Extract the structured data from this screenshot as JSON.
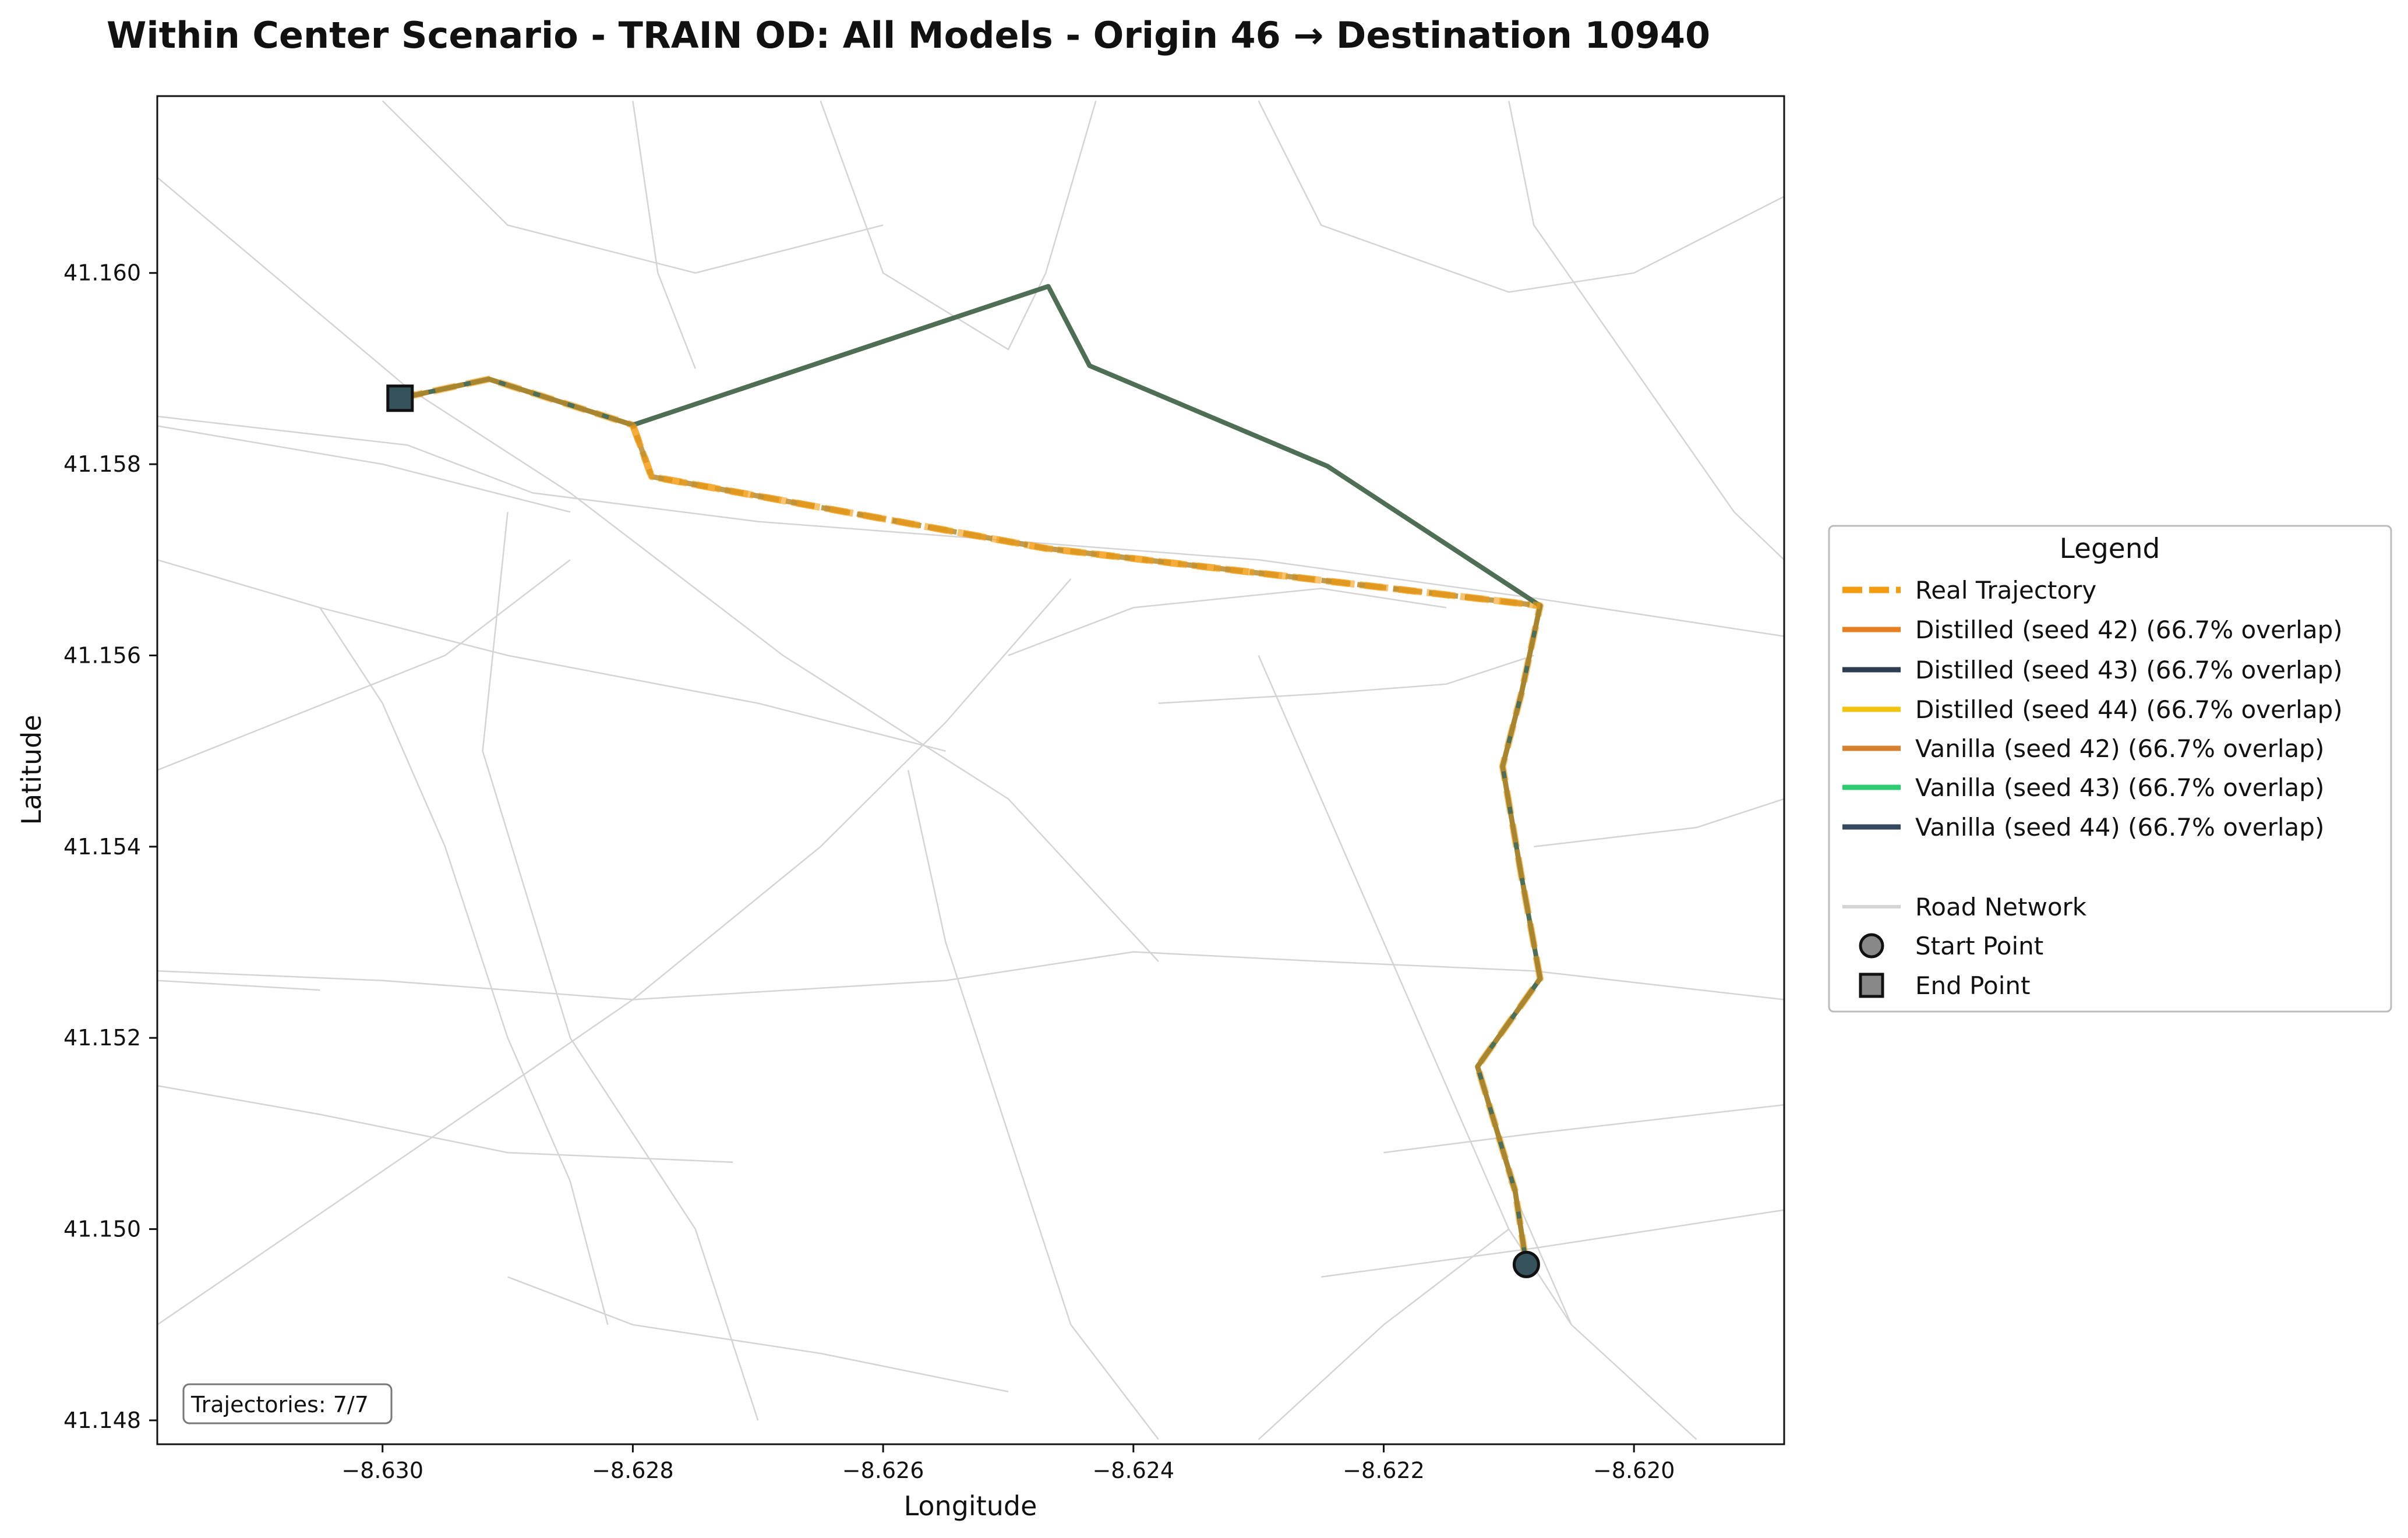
{
  "chart_data": {
    "type": "line",
    "title": "Within Center Scenario - TRAIN OD: All Models - Origin 46 → Destination 10940",
    "xlabel": "Longitude",
    "ylabel": "Latitude",
    "xlim": [
      -8.6318,
      -8.6188
    ],
    "ylim": [
      41.14775,
      41.16185
    ],
    "x_ticks": [
      -8.63,
      -8.628,
      -8.626,
      -8.624,
      -8.622,
      -8.62
    ],
    "x_tick_labels": [
      "−8.630",
      "−8.628",
      "−8.626",
      "−8.624",
      "−8.622",
      "−8.620"
    ],
    "y_ticks": [
      41.148,
      41.15,
      41.152,
      41.154,
      41.156,
      41.158,
      41.16
    ],
    "y_tick_labels": [
      "41.148",
      "41.150",
      "41.152",
      "41.154",
      "41.156",
      "41.158",
      "41.160"
    ],
    "grid": false,
    "legend_title": "Legend",
    "legend_position": "outside-right",
    "counter_label": "Trajectories: 7/7",
    "colors": {
      "real": "#F39C12",
      "distilled_42": "#E67E22",
      "distilled_43": "#2C3E50",
      "distilled_44": "#F1C40F",
      "vanilla_42": "#D68030",
      "vanilla_43": "#2ECC71",
      "vanilla_44": "#34495E",
      "road": "#d4d4d4",
      "composite_generated": "#4E6F55",
      "composite_overlap": "#B8892A",
      "marker_fill": "#36525C"
    },
    "start_point": {
      "label": "Start Point",
      "x": -8.62086,
      "y": 41.14963
    },
    "end_point": {
      "label": "End Point",
      "x": -8.62986,
      "y": 41.15869
    },
    "series": [
      {
        "name": "Real Trajectory",
        "style": "dashed",
        "x": [
          -8.62986,
          -8.62915,
          -8.628,
          -8.62785,
          -8.6247,
          -8.62075,
          -8.6209,
          -8.62105,
          -8.6209,
          -8.62075,
          -8.62125,
          -8.62095,
          -8.62086
        ],
        "y": [
          41.15869,
          41.15889,
          41.15841,
          41.15787,
          41.15712,
          41.15652,
          41.1556,
          41.15484,
          41.1537,
          41.15262,
          41.1517,
          41.1504,
          41.14963
        ]
      },
      {
        "name": "Distilled (seed 42) (66.7% overlap)",
        "x": [
          -8.62986,
          -8.62915,
          -8.628,
          -8.62468,
          -8.62435,
          -8.62245,
          -8.62075,
          -8.6209,
          -8.62105,
          -8.6209,
          -8.62075,
          -8.62125,
          -8.62095,
          -8.62086
        ],
        "y": [
          41.15869,
          41.15889,
          41.15841,
          41.15986,
          41.15903,
          41.15798,
          41.15652,
          41.1556,
          41.15484,
          41.1537,
          41.15262,
          41.1517,
          41.1504,
          41.14963
        ]
      },
      {
        "name": "Distilled (seed 43) (66.7% overlap)",
        "x": [
          -8.62986,
          -8.62915,
          -8.628,
          -8.62468,
          -8.62435,
          -8.62245,
          -8.62075,
          -8.6209,
          -8.62105,
          -8.6209,
          -8.62075,
          -8.62125,
          -8.62095,
          -8.62086
        ],
        "y": [
          41.15869,
          41.15889,
          41.15841,
          41.15986,
          41.15903,
          41.15798,
          41.15652,
          41.1556,
          41.15484,
          41.1537,
          41.15262,
          41.1517,
          41.1504,
          41.14963
        ]
      },
      {
        "name": "Distilled (seed 44) (66.7% overlap)",
        "x": [
          -8.62986,
          -8.62915,
          -8.628,
          -8.62468,
          -8.62435,
          -8.62245,
          -8.62075,
          -8.6209,
          -8.62105,
          -8.6209,
          -8.62075,
          -8.62125,
          -8.62095,
          -8.62086
        ],
        "y": [
          41.15869,
          41.15889,
          41.15841,
          41.15986,
          41.15903,
          41.15798,
          41.15652,
          41.1556,
          41.15484,
          41.1537,
          41.15262,
          41.1517,
          41.1504,
          41.14963
        ]
      },
      {
        "name": "Vanilla (seed 42) (66.7% overlap)",
        "x": [
          -8.62986,
          -8.62915,
          -8.628,
          -8.62468,
          -8.62435,
          -8.62245,
          -8.62075,
          -8.6209,
          -8.62105,
          -8.6209,
          -8.62075,
          -8.62125,
          -8.62095,
          -8.62086
        ],
        "y": [
          41.15869,
          41.15889,
          41.15841,
          41.15986,
          41.15903,
          41.15798,
          41.15652,
          41.1556,
          41.15484,
          41.1537,
          41.15262,
          41.1517,
          41.1504,
          41.14963
        ]
      },
      {
        "name": "Vanilla (seed 43) (66.7% overlap)",
        "x": [
          -8.62986,
          -8.62915,
          -8.628,
          -8.62468,
          -8.62435,
          -8.62245,
          -8.62075,
          -8.6209,
          -8.62105,
          -8.6209,
          -8.62075,
          -8.62125,
          -8.62095,
          -8.62086
        ],
        "y": [
          41.15869,
          41.15889,
          41.15841,
          41.15986,
          41.15903,
          41.15798,
          41.15652,
          41.1556,
          41.15484,
          41.1537,
          41.15262,
          41.1517,
          41.1504,
          41.14963
        ]
      },
      {
        "name": "Vanilla (seed 44) (66.7% overlap)",
        "x": [
          -8.62986,
          -8.62915,
          -8.628,
          -8.62468,
          -8.62435,
          -8.62245,
          -8.62075,
          -8.6209,
          -8.62105,
          -8.6209,
          -8.62075,
          -8.62125,
          -8.62095,
          -8.62086
        ],
        "y": [
          41.15869,
          41.15889,
          41.15841,
          41.15986,
          41.15903,
          41.15798,
          41.15652,
          41.1556,
          41.15484,
          41.1537,
          41.15262,
          41.1517,
          41.1504,
          41.14963
        ]
      }
    ],
    "road_network": {
      "label": "Road Network",
      "segments": [
        [
          [
            -8.6318,
            41.1585
          ],
          [
            -8.6298,
            41.1582
          ],
          [
            -8.6288,
            41.1577
          ],
          [
            -8.627,
            41.1574
          ],
          [
            -8.623,
            41.157
          ],
          [
            -8.6208,
            41.1566
          ],
          [
            -8.6188,
            41.1562
          ]
        ],
        [
          [
            -8.6318,
            41.1584
          ],
          [
            -8.63,
            41.158
          ],
          [
            -8.6285,
            41.1575
          ]
        ],
        [
          [
            -8.6318,
            41.1527
          ],
          [
            -8.63,
            41.1526
          ],
          [
            -8.628,
            41.1524
          ],
          [
            -8.6255,
            41.1526
          ],
          [
            -8.624,
            41.1529
          ],
          [
            -8.6225,
            41.1528
          ],
          [
            -8.6208,
            41.1527
          ],
          [
            -8.6188,
            41.1524
          ]
        ],
        [
          [
            -8.6318,
            41.1526
          ],
          [
            -8.6305,
            41.1525
          ]
        ],
        [
          [
            -8.6318,
            41.161
          ],
          [
            -8.6298,
            41.1588
          ],
          [
            -8.6285,
            41.1577
          ],
          [
            -8.6268,
            41.156
          ],
          [
            -8.625,
            41.1545
          ],
          [
            -8.6238,
            41.1528
          ]
        ],
        [
          [
            -8.6318,
            41.1548
          ],
          [
            -8.6295,
            41.156
          ],
          [
            -8.6285,
            41.157
          ]
        ],
        [
          [
            -8.6318,
            41.149
          ],
          [
            -8.629,
            41.1515
          ],
          [
            -8.628,
            41.1524
          ],
          [
            -8.6265,
            41.154
          ],
          [
            -8.6255,
            41.1553
          ],
          [
            -8.6245,
            41.1568
          ]
        ],
        [
          [
            -8.629,
            41.1575
          ],
          [
            -8.6292,
            41.155
          ],
          [
            -8.6285,
            41.152
          ],
          [
            -8.6275,
            41.15
          ],
          [
            -8.627,
            41.148
          ]
        ],
        [
          [
            -8.6258,
            41.1548
          ],
          [
            -8.6255,
            41.153
          ],
          [
            -8.625,
            41.151
          ],
          [
            -8.6245,
            41.149
          ],
          [
            -8.6238,
            41.1478
          ]
        ],
        [
          [
            -8.623,
            41.156
          ],
          [
            -8.6225,
            41.1545
          ],
          [
            -8.622,
            41.153
          ],
          [
            -8.6215,
            41.1515
          ],
          [
            -8.621,
            41.15
          ],
          [
            -8.6205,
            41.149
          ]
        ],
        [
          [
            -8.6238,
            41.1555
          ],
          [
            -8.6225,
            41.1556
          ],
          [
            -8.6215,
            41.1557
          ],
          [
            -8.6208,
            41.156
          ]
        ],
        [
          [
            -8.6208,
            41.154
          ],
          [
            -8.6195,
            41.1542
          ],
          [
            -8.6188,
            41.1545
          ]
        ],
        [
          [
            -8.622,
            41.1508
          ],
          [
            -8.6208,
            41.151
          ],
          [
            -8.6188,
            41.1513
          ]
        ],
        [
          [
            -8.6225,
            41.1495
          ],
          [
            -8.6208,
            41.1498
          ],
          [
            -8.6188,
            41.1502
          ]
        ],
        [
          [
            -8.6265,
            41.1618
          ],
          [
            -8.626,
            41.16
          ],
          [
            -8.625,
            41.1592
          ],
          [
            -8.6247,
            41.16
          ],
          [
            -8.6243,
            41.1618
          ]
        ],
        [
          [
            -8.623,
            41.1618
          ],
          [
            -8.6225,
            41.1605
          ],
          [
            -8.621,
            41.1598
          ],
          [
            -8.62,
            41.16
          ],
          [
            -8.6188,
            41.1608
          ]
        ],
        [
          [
            -8.621,
            41.1618
          ],
          [
            -8.6208,
            41.1605
          ],
          [
            -8.62,
            41.159
          ],
          [
            -8.6192,
            41.1575
          ],
          [
            -8.6188,
            41.157
          ]
        ],
        [
          [
            -8.63,
            41.1618
          ],
          [
            -8.629,
            41.1605
          ],
          [
            -8.6275,
            41.16
          ],
          [
            -8.626,
            41.1605
          ]
        ],
        [
          [
            -8.628,
            41.1618
          ],
          [
            -8.6278,
            41.16
          ],
          [
            -8.6275,
            41.159
          ]
        ],
        [
          [
            -8.6305,
            41.1565
          ],
          [
            -8.63,
            41.1555
          ],
          [
            -8.6295,
            41.154
          ],
          [
            -8.629,
            41.152
          ],
          [
            -8.6285,
            41.1505
          ],
          [
            -8.6282,
            41.149
          ]
        ],
        [
          [
            -8.623,
            41.1478
          ],
          [
            -8.622,
            41.149
          ],
          [
            -8.621,
            41.15
          ]
        ],
        [
          [
            -8.6195,
            41.1478
          ],
          [
            -8.6205,
            41.149
          ],
          [
            -8.621,
            41.1505
          ]
        ],
        [
          [
            -8.6318,
            41.157
          ],
          [
            -8.6305,
            41.1565
          ],
          [
            -8.629,
            41.156
          ],
          [
            -8.627,
            41.1555
          ],
          [
            -8.6255,
            41.155
          ]
        ],
        [
          [
            -8.6318,
            41.1515
          ],
          [
            -8.6305,
            41.1512
          ],
          [
            -8.629,
            41.1508
          ],
          [
            -8.6272,
            41.1507
          ]
        ],
        [
          [
            -8.629,
            41.1495
          ],
          [
            -8.628,
            41.149
          ],
          [
            -8.6265,
            41.1487
          ],
          [
            -8.625,
            41.1483
          ]
        ],
        [
          [
            -8.625,
            41.156
          ],
          [
            -8.624,
            41.1565
          ],
          [
            -8.6225,
            41.1567
          ],
          [
            -8.6215,
            41.1565
          ]
        ]
      ]
    }
  }
}
